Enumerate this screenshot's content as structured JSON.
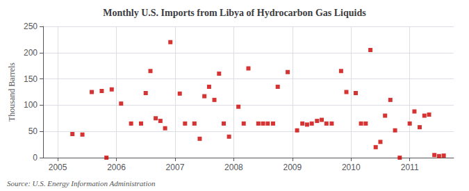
{
  "chart_data": {
    "type": "scatter",
    "title": "Monthly U.S. Imports from Libya of Hydrocarbon Gas Liquids",
    "ylabel": "Thousand Barrels",
    "source": "Source: U.S. Energy Information Administration",
    "color": "#cc0000",
    "marker": "square",
    "grid": true,
    "xlim": [
      2004.75,
      2011.75
    ],
    "ylim": [
      0,
      250
    ],
    "xticks": [
      2005,
      2006,
      2007,
      2008,
      2009,
      2010,
      2011
    ],
    "yticks": [
      0,
      50,
      100,
      150,
      200,
      250
    ],
    "x": [
      2005.25,
      2005.42,
      2005.58,
      2005.75,
      2005.92,
      2005.83,
      2006.08,
      2006.25,
      2006.42,
      2006.5,
      2006.58,
      2006.67,
      2006.75,
      2006.83,
      2006.92,
      2007.08,
      2007.17,
      2007.33,
      2007.42,
      2007.5,
      2007.58,
      2007.67,
      2007.75,
      2007.83,
      2007.92,
      2008.08,
      2008.17,
      2008.25,
      2008.42,
      2008.5,
      2008.58,
      2008.67,
      2008.75,
      2008.92,
      2009.08,
      2009.17,
      2009.25,
      2009.33,
      2009.42,
      2009.5,
      2009.58,
      2009.67,
      2009.83,
      2009.92,
      2010.08,
      2010.17,
      2010.25,
      2010.33,
      2010.42,
      2010.5,
      2010.58,
      2010.67,
      2010.75,
      2010.83,
      2011.0,
      2011.08,
      2011.17,
      2011.25,
      2011.33,
      2011.42,
      2011.5,
      2011.58
    ],
    "values": [
      45,
      44,
      125,
      127,
      130,
      0,
      103,
      65,
      65,
      123,
      165,
      75,
      70,
      56,
      220,
      122,
      65,
      65,
      36,
      117,
      135,
      110,
      160,
      65,
      40,
      97,
      65,
      170,
      65,
      65,
      65,
      65,
      135,
      163,
      52,
      65,
      63,
      65,
      70,
      72,
      65,
      65,
      165,
      125,
      123,
      65,
      65,
      205,
      20,
      30,
      80,
      110,
      52,
      0,
      65,
      88,
      58,
      80,
      82,
      5,
      3,
      4
    ]
  }
}
